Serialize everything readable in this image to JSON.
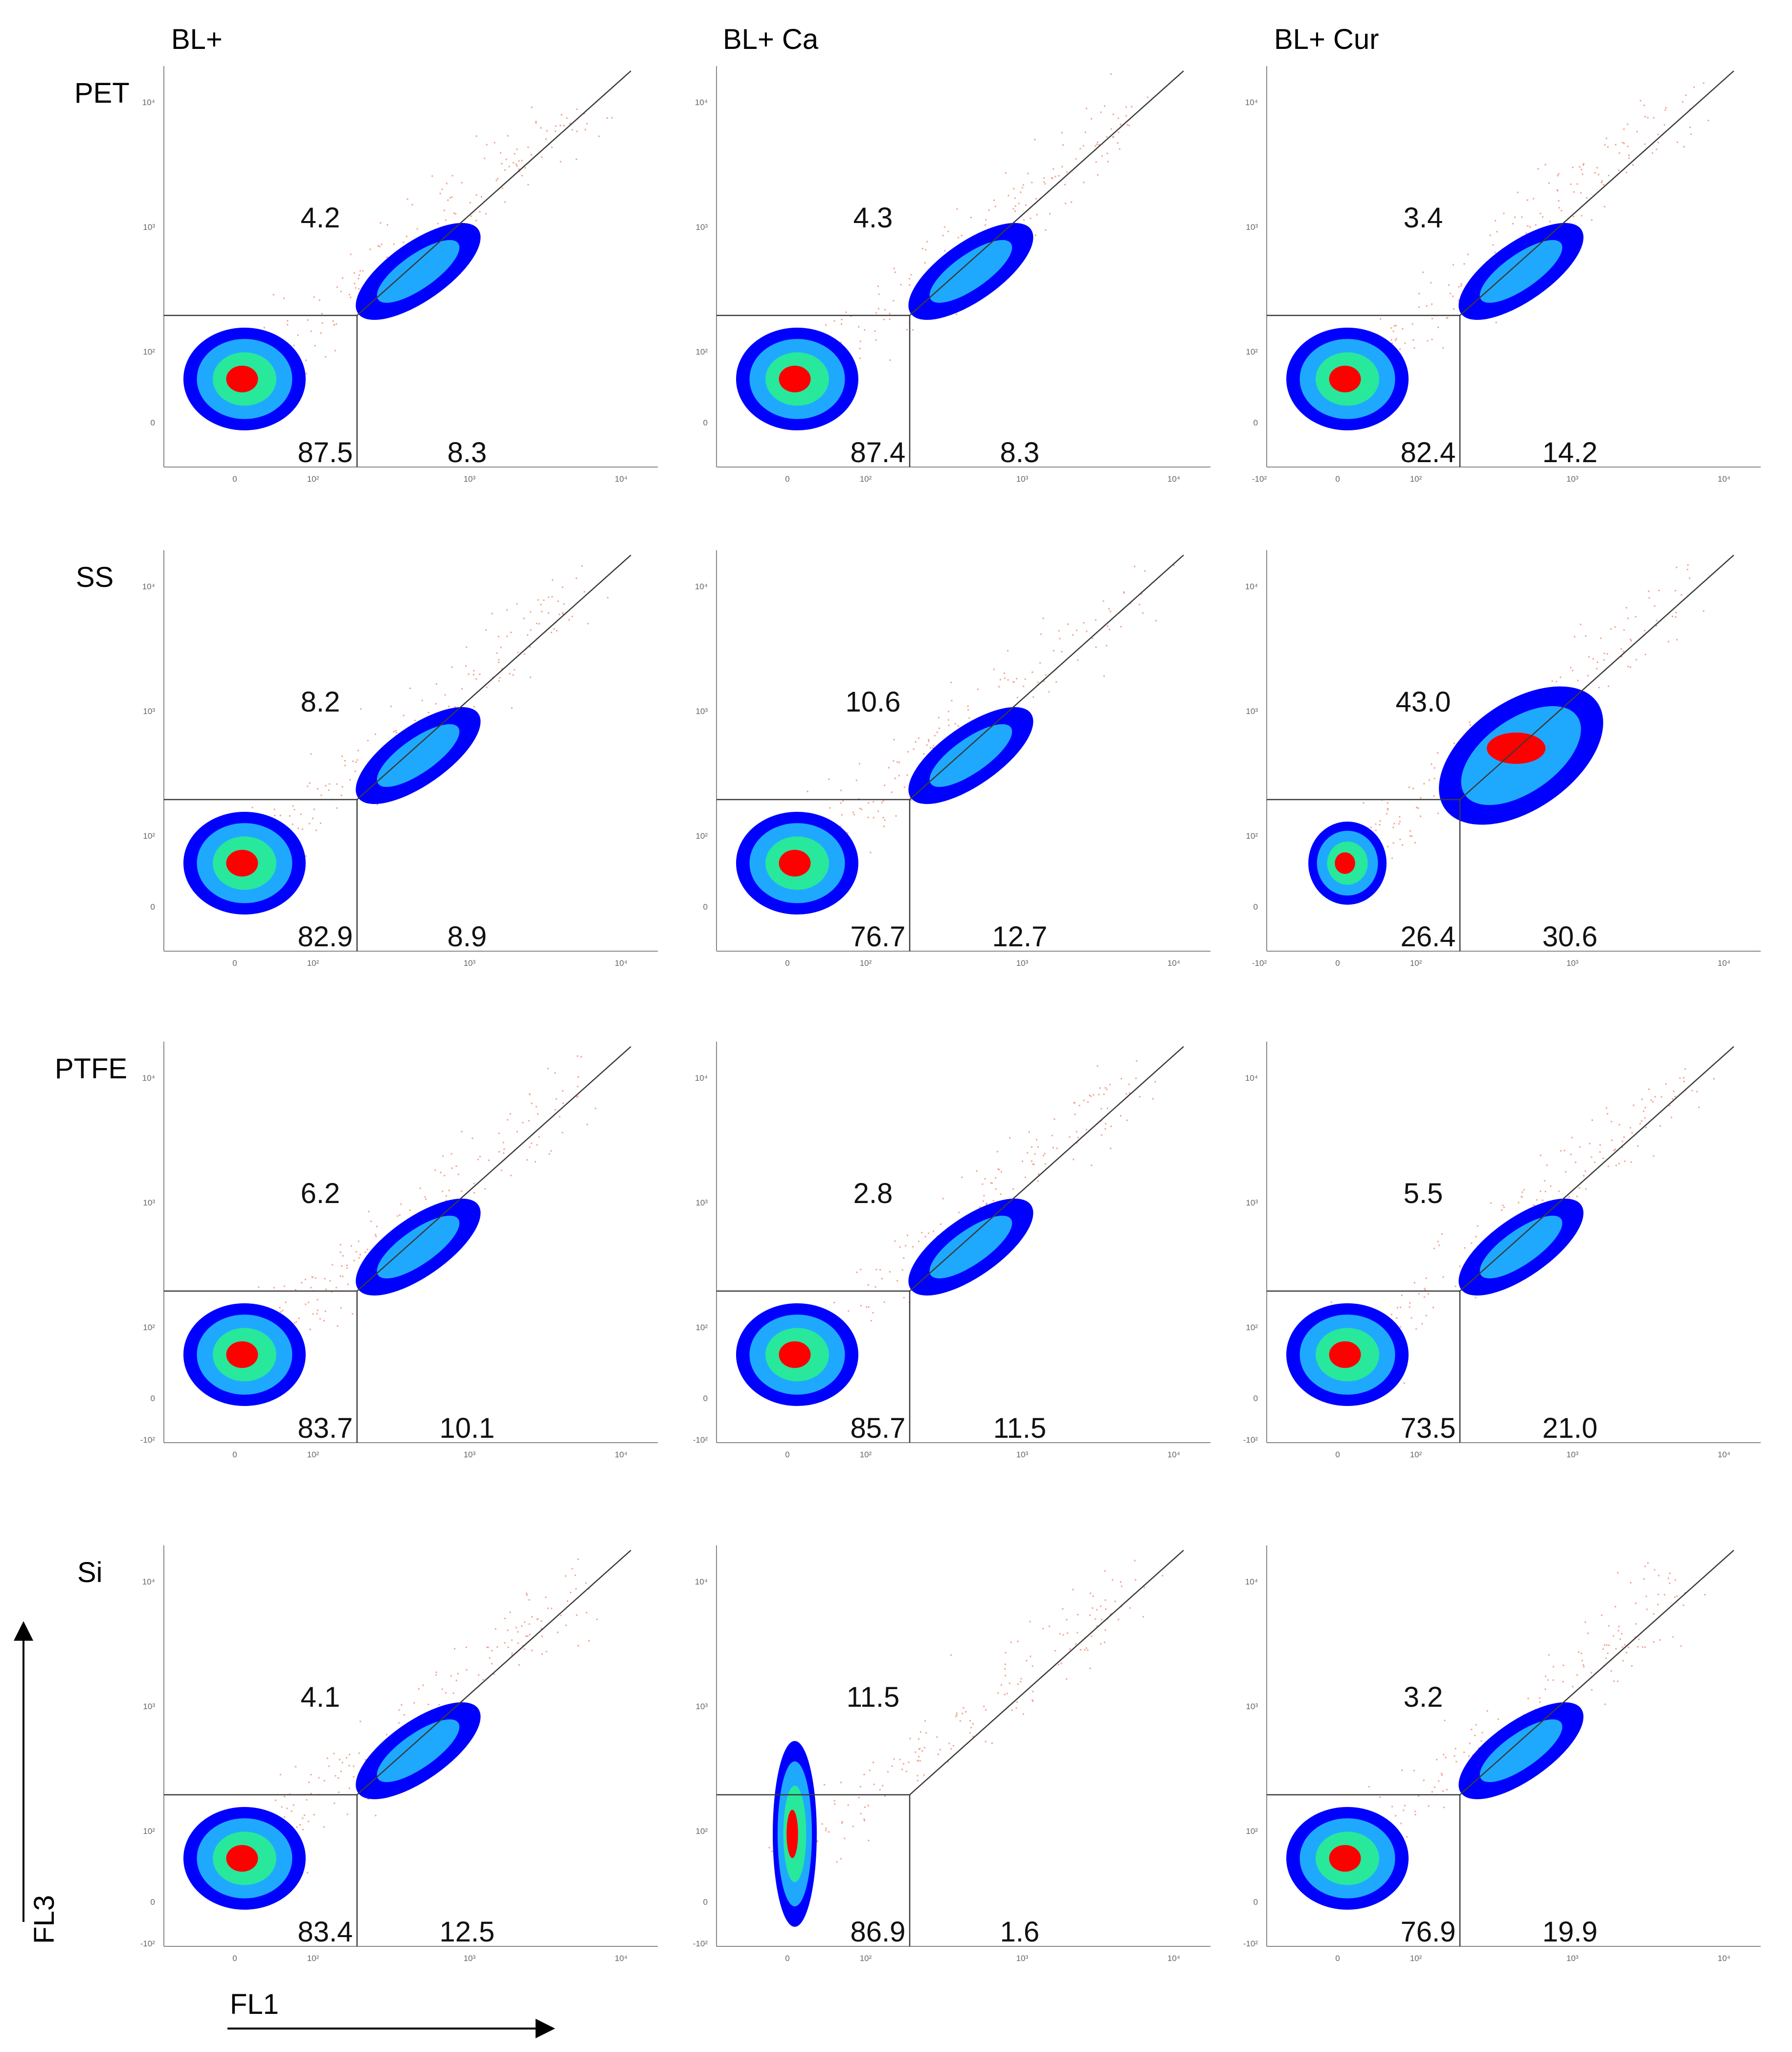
{
  "chart_data": {
    "type": "scatter",
    "title": "",
    "xlabel": "FL1",
    "ylabel": "FL3",
    "column_headers": [
      "BL+",
      "BL+ Ca",
      "BL+ Cur"
    ],
    "row_headers": [
      "PET",
      "SS",
      "PTFE",
      "Si"
    ],
    "tick_labels": [
      "10⁴",
      "10³",
      "10²",
      "0",
      "-10²"
    ],
    "panels": [
      {
        "row": "PET",
        "column": "BL+",
        "upper": "4.2",
        "lower_left": "87.5",
        "lower_right": "8.3"
      },
      {
        "row": "PET",
        "column": "BL+ Ca",
        "upper": "4.3",
        "lower_left": "87.4",
        "lower_right": "8.3"
      },
      {
        "row": "PET",
        "column": "BL+ Cur",
        "upper": "3.4",
        "lower_left": "82.4",
        "lower_right": "14.2"
      },
      {
        "row": "SS",
        "column": "BL+",
        "upper": "8.2",
        "lower_left": "82.9",
        "lower_right": "8.9"
      },
      {
        "row": "SS",
        "column": "BL+ Ca",
        "upper": "10.6",
        "lower_left": "76.7",
        "lower_right": "12.7"
      },
      {
        "row": "SS",
        "column": "BL+ Cur",
        "upper": "43.0",
        "lower_left": "26.4",
        "lower_right": "30.6"
      },
      {
        "row": "PTFE",
        "column": "BL+",
        "upper": "6.2",
        "lower_left": "83.7",
        "lower_right": "10.1"
      },
      {
        "row": "PTFE",
        "column": "BL+ Ca",
        "upper": "2.8",
        "lower_left": "85.7",
        "lower_right": "11.5"
      },
      {
        "row": "PTFE",
        "column": "BL+ Cur",
        "upper": "5.5",
        "lower_left": "73.5",
        "lower_right": "21.0"
      },
      {
        "row": "Si",
        "column": "BL+",
        "upper": "4.1",
        "lower_left": "83.4",
        "lower_right": "12.5"
      },
      {
        "row": "Si",
        "column": "BL+ Ca",
        "upper": "11.5",
        "lower_left": "86.9",
        "lower_right": "1.6"
      },
      {
        "row": "Si",
        "column": "BL+ Cur",
        "upper": "3.2",
        "lower_left": "76.9",
        "lower_right": "19.9"
      }
    ]
  },
  "colors": {
    "axis": "#8a8a8a",
    "gate": "#3a3a3a",
    "sparse_events": "#f2a38f",
    "density_low": "#0000ff",
    "density_mid": "#1ea9ff",
    "density_high": "#28e89c",
    "density_peak": "#ff0000"
  }
}
